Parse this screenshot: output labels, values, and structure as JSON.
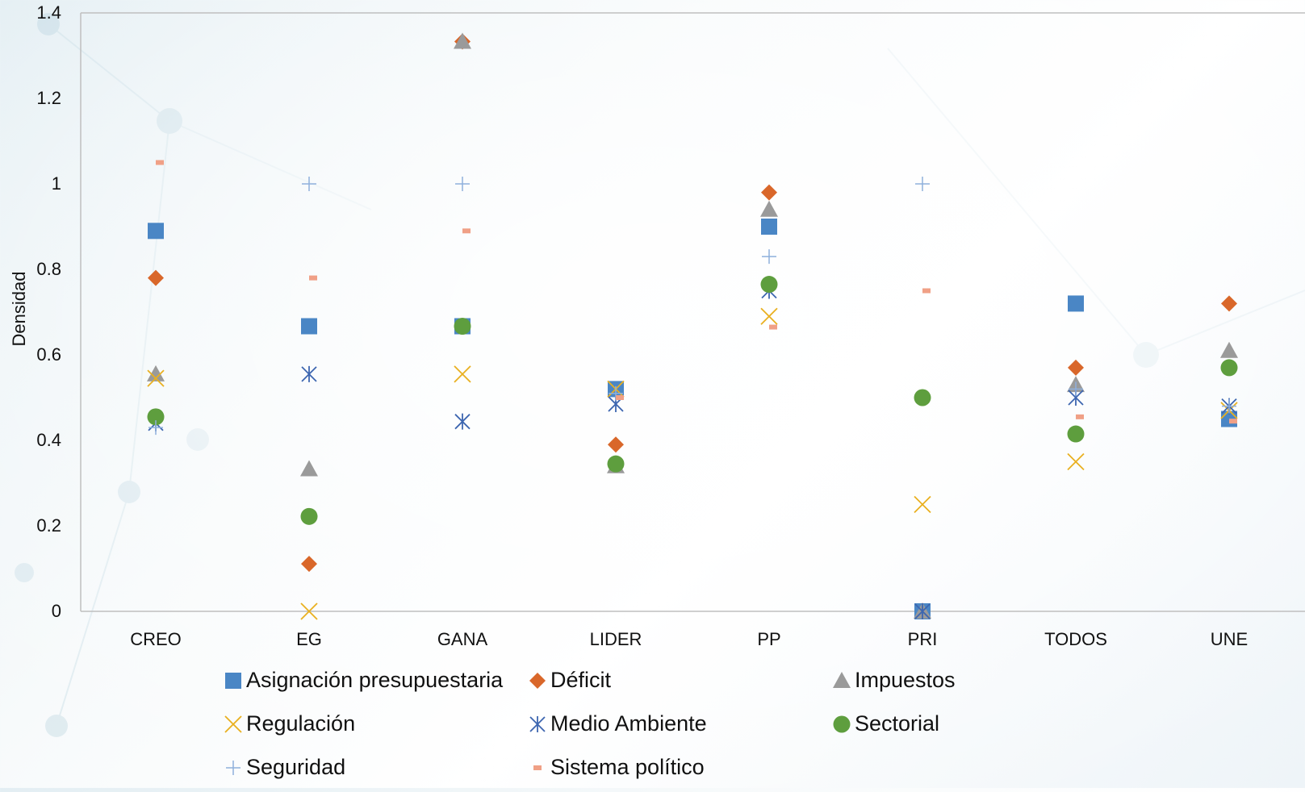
{
  "chart_data": {
    "type": "scatter",
    "title": "",
    "xlabel": "",
    "ylabel": "Densidad",
    "categories": [
      "CREO",
      "EG",
      "GANA",
      "LIDER",
      "PP",
      "PRI",
      "TODOS",
      "UNE"
    ],
    "ylim": [
      0,
      1.4
    ],
    "yticks": [
      "0",
      "0.2",
      "0.4",
      "0.6",
      "0.8",
      "1",
      "1.2",
      "1.4"
    ],
    "grid": false,
    "legend": "bottom",
    "series": [
      {
        "name": "Asignación presupuestaria",
        "marker": "square",
        "color": "#4a86c5",
        "values": [
          0.89,
          0.667,
          0.667,
          0.52,
          0.9,
          0.0,
          0.72,
          0.45
        ]
      },
      {
        "name": "Déficit",
        "marker": "diamond",
        "color": "#d9672a",
        "values": [
          0.78,
          0.111,
          1.333,
          0.39,
          0.98,
          null,
          0.57,
          0.72
        ]
      },
      {
        "name": "Impuestos",
        "marker": "triangle",
        "color": "#9a9a9a",
        "values": [
          0.555,
          0.333,
          1.333,
          0.34,
          0.94,
          0.0,
          0.53,
          0.61
        ]
      },
      {
        "name": "Regulación",
        "marker": "x",
        "color": "#e9b020",
        "values": [
          0.545,
          0.0,
          0.555,
          0.52,
          0.69,
          0.25,
          0.35,
          0.47
        ]
      },
      {
        "name": "Medio Ambiente",
        "marker": "star",
        "color": "#3d66b0",
        "values": [
          0.44,
          0.555,
          0.444,
          0.485,
          0.75,
          0.0,
          0.5,
          0.48
        ]
      },
      {
        "name": "Sectorial",
        "marker": "circle",
        "color": "#5e9e3e",
        "values": [
          0.455,
          0.222,
          0.667,
          0.345,
          0.765,
          0.5,
          0.415,
          0.57
        ]
      },
      {
        "name": "Seguridad",
        "marker": "plus",
        "color": "#8fb0dc",
        "values": [
          0.43,
          1.0,
          1.0,
          0.51,
          0.83,
          1.0,
          0.52,
          0.48
        ]
      },
      {
        "name": "Sistema político",
        "marker": "dash",
        "color": "#f0a086",
        "values": [
          1.05,
          0.78,
          0.89,
          0.5,
          0.665,
          0.75,
          0.455,
          0.445
        ]
      }
    ]
  }
}
